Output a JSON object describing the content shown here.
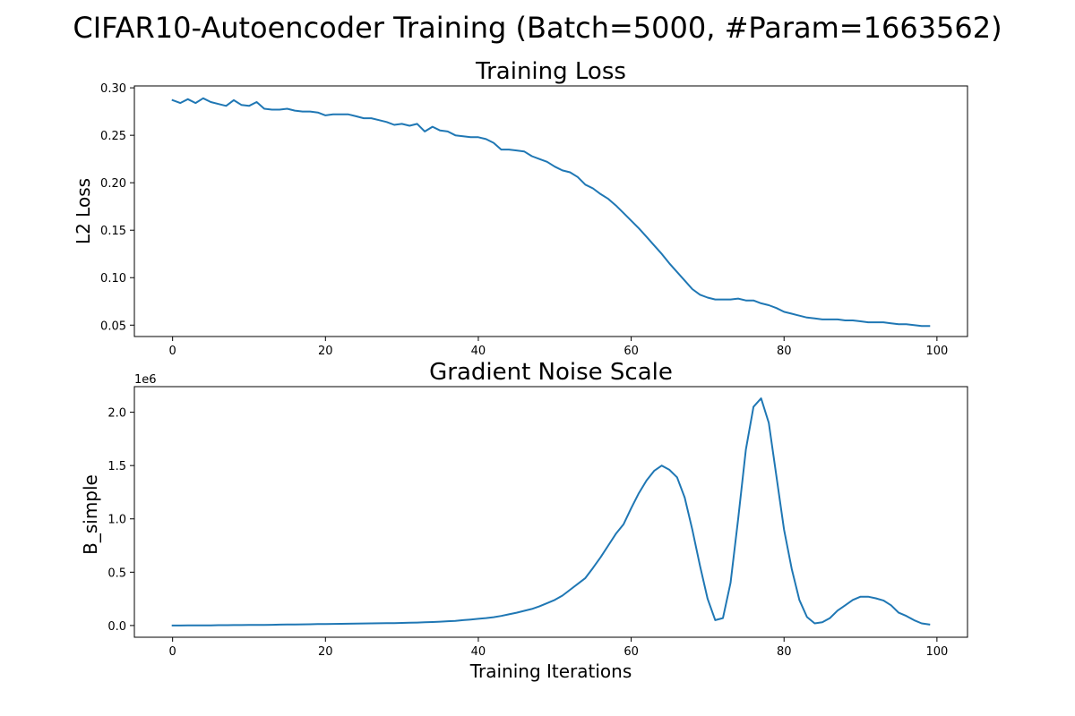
{
  "figure": {
    "suptitle": "CIFAR10-Autoencoder Training (Batch=5000, #Param=1663562)"
  },
  "chart_data": [
    {
      "type": "line",
      "title": "Training Loss",
      "xlabel": "",
      "ylabel": "L2 Loss",
      "xlim": [
        -5,
        104
      ],
      "ylim": [
        0.038,
        0.302
      ],
      "xticks": [
        0,
        20,
        40,
        60,
        80,
        100
      ],
      "yticks": [
        0.05,
        0.1,
        0.15,
        0.2,
        0.25,
        0.3
      ],
      "ytick_labels": [
        "0.05",
        "0.10",
        "0.15",
        "0.20",
        "0.25",
        "0.30"
      ],
      "grid": false,
      "color": "#1f77b4",
      "series": [
        {
          "values": [
            0.287,
            0.284,
            0.288,
            0.284,
            0.289,
            0.285,
            0.283,
            0.281,
            0.287,
            0.282,
            0.281,
            0.285,
            0.278,
            0.277,
            0.277,
            0.278,
            0.276,
            0.275,
            0.275,
            0.274,
            0.271,
            0.272,
            0.272,
            0.272,
            0.27,
            0.268,
            0.268,
            0.266,
            0.264,
            0.261,
            0.262,
            0.26,
            0.262,
            0.254,
            0.259,
            0.255,
            0.254,
            0.25,
            0.249,
            0.248,
            0.248,
            0.246,
            0.242,
            0.235,
            0.235,
            0.234,
            0.233,
            0.228,
            0.225,
            0.222,
            0.217,
            0.213,
            0.211,
            0.206,
            0.198,
            0.194,
            0.188,
            0.183,
            0.176,
            0.168,
            0.16,
            0.152,
            0.143,
            0.134,
            0.125,
            0.115,
            0.106,
            0.097,
            0.088,
            0.082,
            0.079,
            0.077,
            0.077,
            0.077,
            0.078,
            0.076,
            0.076,
            0.073,
            0.071,
            0.068,
            0.064,
            0.062,
            0.06,
            0.058,
            0.057,
            0.056,
            0.056,
            0.056,
            0.055,
            0.055,
            0.054,
            0.053,
            0.053,
            0.053,
            0.052,
            0.051,
            0.051,
            0.05,
            0.049,
            0.049
          ]
        }
      ]
    },
    {
      "type": "line",
      "title": "Gradient Noise Scale",
      "xlabel": "Training Iterations",
      "ylabel": "B_simple",
      "offset_text": "1e6",
      "xlim": [
        -5,
        104
      ],
      "ylim": [
        -0.11,
        2.24
      ],
      "xticks": [
        0,
        20,
        40,
        60,
        80,
        100
      ],
      "yticks": [
        0.0,
        0.5,
        1.0,
        1.5,
        2.0
      ],
      "ytick_labels": [
        "0.0",
        "0.5",
        "1.0",
        "1.5",
        "2.0"
      ],
      "grid": false,
      "color": "#1f77b4",
      "series": [
        {
          "values": [
            0.0,
            0.0,
            0.001,
            0.001,
            0.002,
            0.002,
            0.003,
            0.003,
            0.004,
            0.004,
            0.005,
            0.006,
            0.006,
            0.007,
            0.008,
            0.009,
            0.01,
            0.011,
            0.012,
            0.013,
            0.014,
            0.015,
            0.016,
            0.017,
            0.018,
            0.019,
            0.02,
            0.021,
            0.022,
            0.023,
            0.024,
            0.026,
            0.028,
            0.03,
            0.033,
            0.036,
            0.04,
            0.044,
            0.05,
            0.056,
            0.063,
            0.07,
            0.078,
            0.09,
            0.105,
            0.12,
            0.138,
            0.155,
            0.18,
            0.21,
            0.24,
            0.28,
            0.335,
            0.39,
            0.445,
            0.54,
            0.64,
            0.75,
            0.86,
            0.95,
            1.1,
            1.24,
            1.36,
            1.45,
            1.5,
            1.46,
            1.39,
            1.2,
            0.9,
            0.56,
            0.25,
            0.05,
            0.07,
            0.4,
            1.0,
            1.65,
            2.05,
            2.13,
            1.9,
            1.4,
            0.9,
            0.53,
            0.24,
            0.08,
            0.02,
            0.03,
            0.07,
            0.14,
            0.19,
            0.24,
            0.27,
            0.27,
            0.255,
            0.235,
            0.19,
            0.12,
            0.09,
            0.05,
            0.02,
            0.01
          ]
        }
      ]
    }
  ]
}
